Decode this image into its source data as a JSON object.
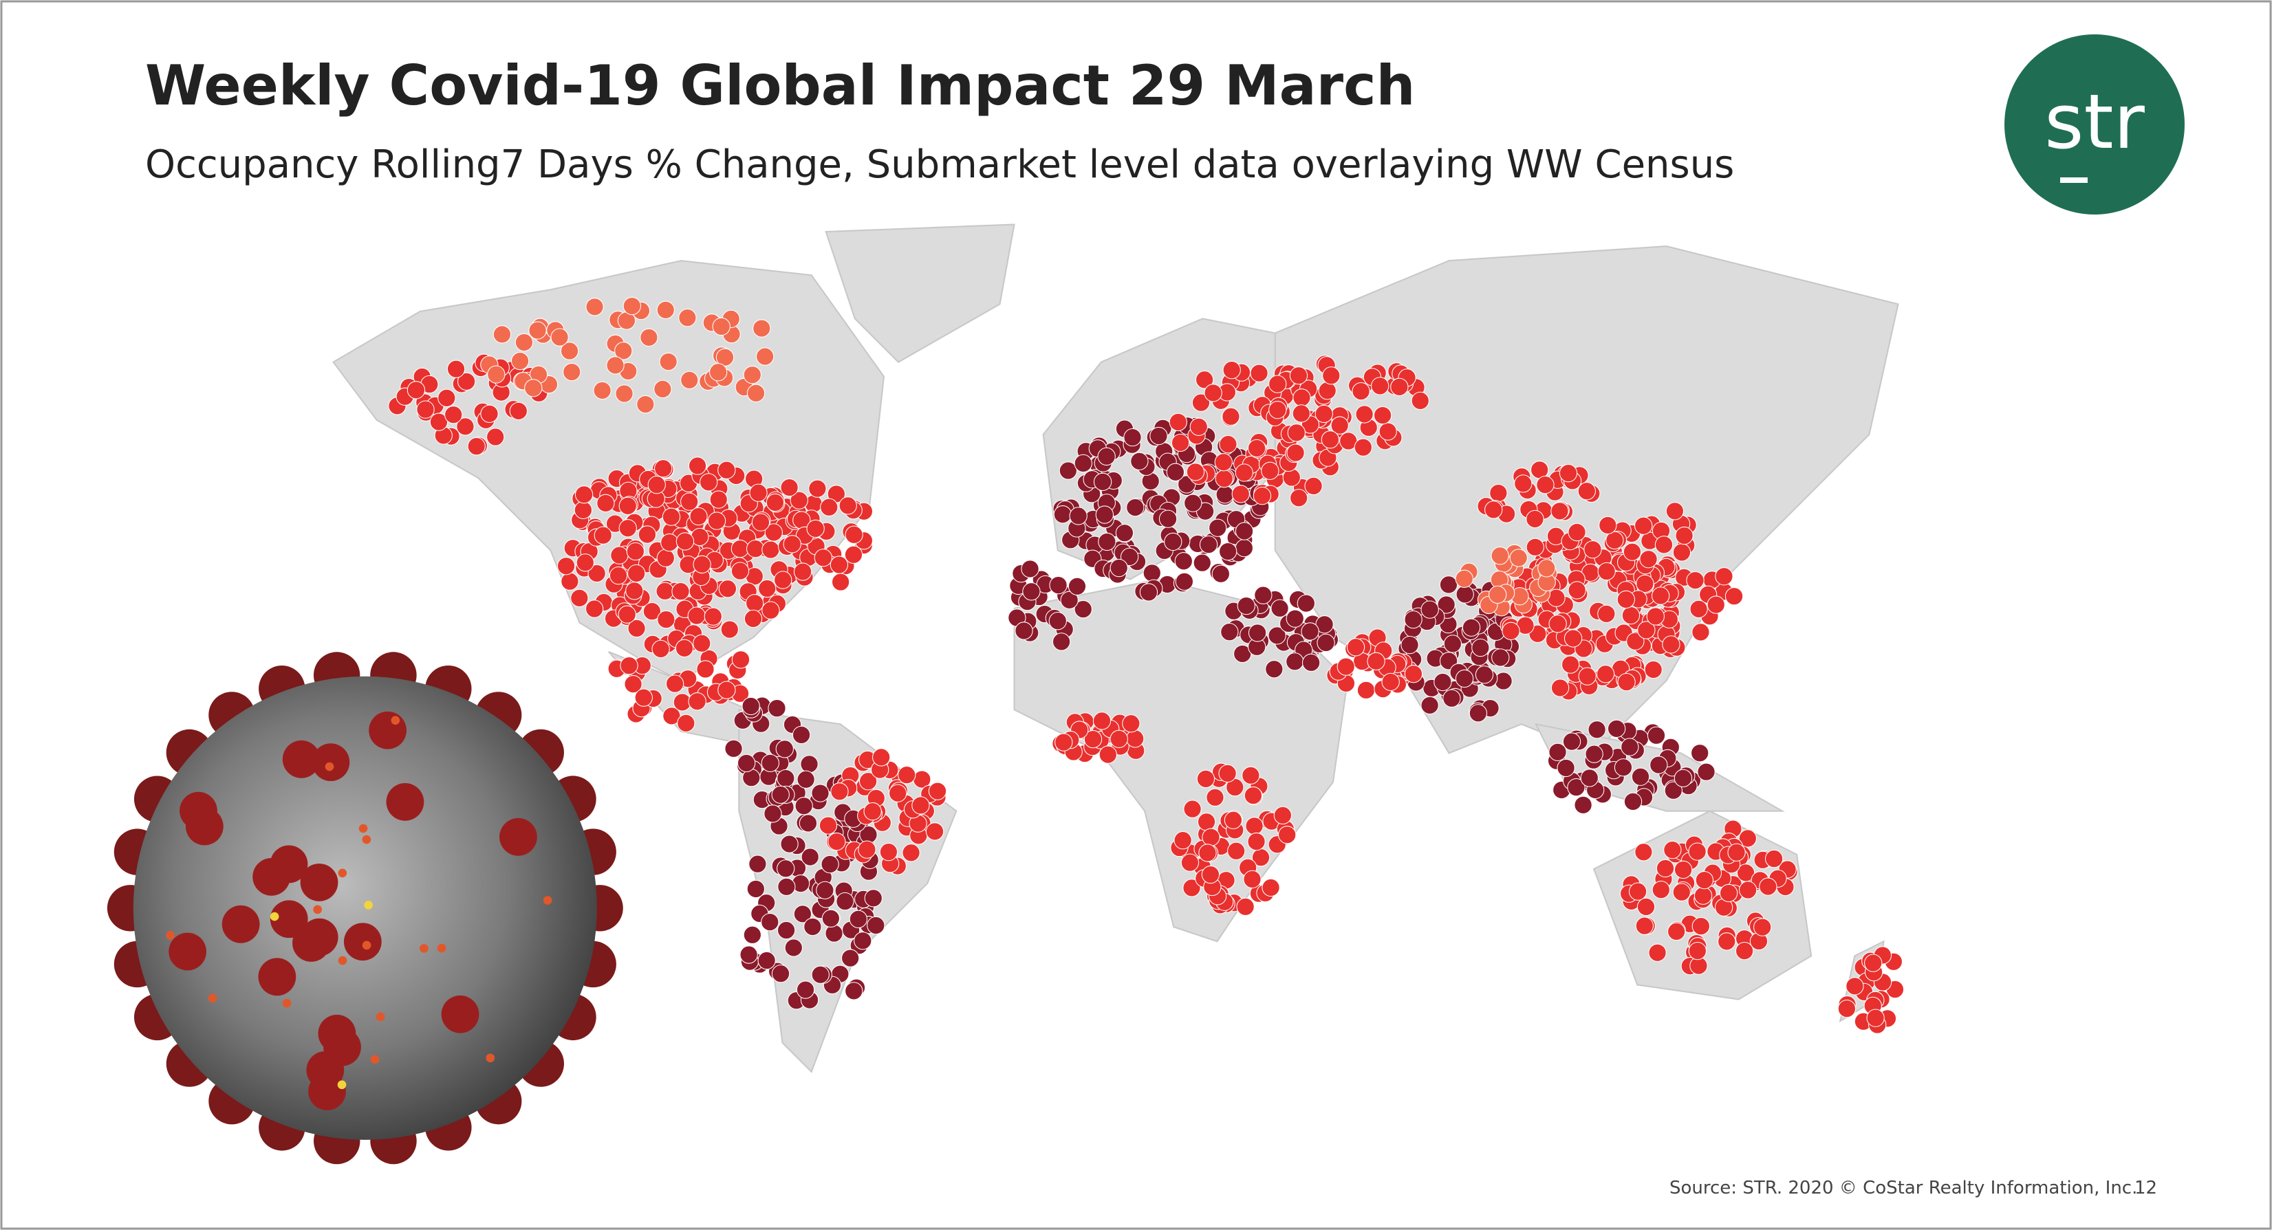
{
  "header": {
    "title": "Weekly Covid-19 Global Impact 29 March",
    "subtitle": "Occupancy Rolling7 Days % Change, Submarket level data overlaying WW Census"
  },
  "logo": {
    "text": "str"
  },
  "footer": {
    "source": "Source: STR. 2020 © CoStar Realty Information, Inc.",
    "page_number": "12"
  }
}
